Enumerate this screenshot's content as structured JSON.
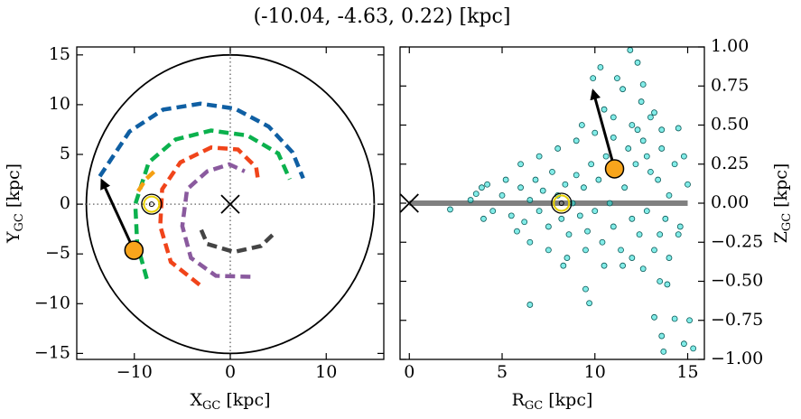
{
  "title": "(-10.04, -4.63, 0.22) [kpc]",
  "chart_data": [
    {
      "type": "line",
      "xlabel": {
        "main": "X",
        "sub": "GC",
        "unit": "[kpc]"
      },
      "ylabel": {
        "main": "Y",
        "sub": "GC",
        "unit": "[kpc]"
      },
      "xlim": [
        -16,
        16
      ],
      "ylim": [
        -15.6,
        15.8
      ],
      "xticks": [
        {
          "value": -10,
          "label": "−10"
        },
        0,
        10
      ],
      "yticks": [
        {
          "value": -15,
          "label": "−15"
        },
        {
          "value": -10,
          "label": "−10"
        },
        {
          "value": -5,
          "label": "−5"
        },
        0,
        5,
        10,
        15
      ],
      "series": [
        {
          "color": "#0f5fa3",
          "x": [
            -13.6,
            -10.5,
            -7,
            -3.1,
            0.5,
            4,
            6.5,
            7.6
          ],
          "y": [
            2.8,
            7.3,
            9.5,
            10.1,
            9.6,
            7.8,
            5.2,
            2.6
          ]
        },
        {
          "color": "#0bb14d",
          "x": [
            -8.7,
            -9.7,
            -9.9,
            -8.5,
            -5.7,
            -2,
            1.8,
            5,
            6.2
          ],
          "y": [
            -7.5,
            -4,
            0,
            4.2,
            6.5,
            7.4,
            6.9,
            5.1,
            2.5
          ]
        },
        {
          "color": "#f5a012",
          "x": [
            -9.6,
            -8.8,
            -7.8
          ],
          "y": [
            1.3,
            2.5,
            3.4
          ]
        },
        {
          "color": "#f0441a",
          "x": [
            -3.2,
            -6.2,
            -7.3,
            -7.1,
            -5.2,
            -2,
            0.8,
            2.7,
            2.9
          ],
          "y": [
            -8.1,
            -5.8,
            -2.2,
            1.5,
            4.2,
            5.7,
            5.5,
            3.7,
            2.4
          ]
        },
        {
          "color": "#8a5a9e",
          "x": [
            2.1,
            -1.5,
            -4.1,
            -5,
            -4.5,
            -2.4,
            -0.1,
            1.5
          ],
          "y": [
            -7.3,
            -7.2,
            -5.4,
            -2.2,
            1.5,
            3.3,
            4,
            3.3
          ]
        },
        {
          "color": "#444444",
          "x": [
            4.4,
            3.2,
            0.4,
            -2.4,
            -3.2
          ],
          "y": [
            -3.1,
            -4.2,
            -4.8,
            -4,
            -2.2
          ]
        }
      ],
      "circle": {
        "radius": 15
      },
      "dotted_lines": {
        "x": 0,
        "y": 0
      },
      "cross": {
        "x": 0,
        "y": 0
      },
      "sun": {
        "x": -8.2,
        "y": 0
      },
      "star": {
        "x": -10.04,
        "y": -4.63,
        "color": "#f8a51c"
      },
      "arrow": {
        "x": -13.4,
        "y": 2.4
      }
    },
    {
      "type": "scatter",
      "xlabel": {
        "main": "R",
        "sub": "GC",
        "unit": "[kpc]"
      },
      "ylabel": {
        "main": "Z",
        "sub": "GC",
        "unit": "[kpc]"
      },
      "xlim": [
        -0.5,
        15.9
      ],
      "ylim": [
        -1,
        1
      ],
      "xticks": [
        0,
        5,
        10,
        15
      ],
      "yticks": [
        {
          "value": -1,
          "label": "−1.00"
        },
        {
          "value": -0.75,
          "label": "−0.75"
        },
        {
          "value": -0.5,
          "label": "−0.50"
        },
        {
          "value": -0.25,
          "label": "−0.25"
        },
        {
          "value": 0,
          "label": "0.00"
        },
        {
          "value": 0.25,
          "label": "0.25"
        },
        {
          "value": 0.5,
          "label": "0.50"
        },
        {
          "value": 0.75,
          "label": "0.75"
        },
        {
          "value": 1,
          "label": "1.00"
        }
      ],
      "points": {
        "color": "#2ee0d8",
        "x": [
          5,
          5.5,
          6,
          6.2,
          6.5,
          6.8,
          7,
          7.2,
          7.5,
          7.7,
          8,
          8.2,
          8.4,
          8.6,
          8.8,
          9,
          9.2,
          9.4,
          9.6,
          9.8,
          10,
          10.2,
          10.4,
          10.6,
          10.8,
          11,
          11.2,
          11.4,
          11.6,
          11.8,
          12,
          12.2,
          12.4,
          12.6,
          12.8,
          13,
          13.2,
          13.4,
          13.6,
          13.8,
          14,
          14.3,
          14.6,
          6,
          7,
          8,
          9,
          10,
          11,
          12,
          6.5,
          7.5,
          8.5,
          9.5,
          10.5,
          12,
          4.5,
          5.2,
          5.8,
          3.6,
          4.2,
          13,
          12.5,
          10.5,
          9.3,
          11.2,
          12.8,
          14.8,
          14,
          13.5,
          11.9,
          12.3,
          10.3,
          9.9,
          11.5,
          12.6,
          13.2,
          14.5,
          13.6,
          12.3,
          11,
          15,
          3.9,
          3.3,
          2.2,
          4,
          14.5,
          13.5,
          13.9,
          12.6,
          9.5,
          11.5,
          8.3,
          13.6,
          15.1,
          14.3,
          15.3,
          13.7,
          6.5,
          9.7,
          13.2,
          14.8
        ],
        "y": [
          0.05,
          -0.08,
          0.1,
          -0.12,
          0.02,
          0.15,
          -0.05,
          0.08,
          -0.15,
          0.2,
          0.05,
          -0.1,
          0.12,
          -0.2,
          0,
          0.18,
          -0.08,
          0.1,
          -0.18,
          0.25,
          -0.05,
          0.15,
          -0.25,
          0.3,
          0,
          -0.15,
          0.2,
          -0.3,
          0.1,
          0.35,
          -0.1,
          0.25,
          -0.2,
          0.4,
          -0.05,
          0.2,
          -0.3,
          0.15,
          0.35,
          -0.1,
          0.05,
          0.25,
          -0.15,
          0.25,
          0.3,
          0.35,
          0.4,
          0.45,
          0.42,
          0.5,
          -0.25,
          -0.3,
          -0.35,
          -0.3,
          -0.4,
          -0.35,
          -0.05,
          0.15,
          -0.18,
          0.06,
          0.12,
          0.55,
          0.65,
          0.6,
          0.5,
          0.8,
          0.3,
          0.3,
          -0.35,
          -0.2,
          0.98,
          0.9,
          0.87,
          0.8,
          0.73,
          0.76,
          0.58,
          0.48,
          0.47,
          0.47,
          0.55,
          0.12,
          0.1,
          0.02,
          -0.04,
          -0.1,
          -0.2,
          -0.5,
          -0.52,
          -0.42,
          -0.55,
          -0.4,
          -0.4,
          -0.85,
          -0.75,
          -0.74,
          -0.93,
          -0.95,
          -0.65,
          -0.64,
          -0.73,
          -0.9
        ]
      },
      "disk_line": {
        "x": [
          0,
          15
        ],
        "y": 0
      },
      "cross": {
        "x": 0,
        "y": 0
      },
      "sun": {
        "x": 8.2,
        "y": 0
      },
      "star": {
        "x": 11.06,
        "y": 0.22,
        "color": "#f8a51c"
      },
      "arrow": {
        "x": 9.9,
        "y": 0.72
      }
    }
  ]
}
